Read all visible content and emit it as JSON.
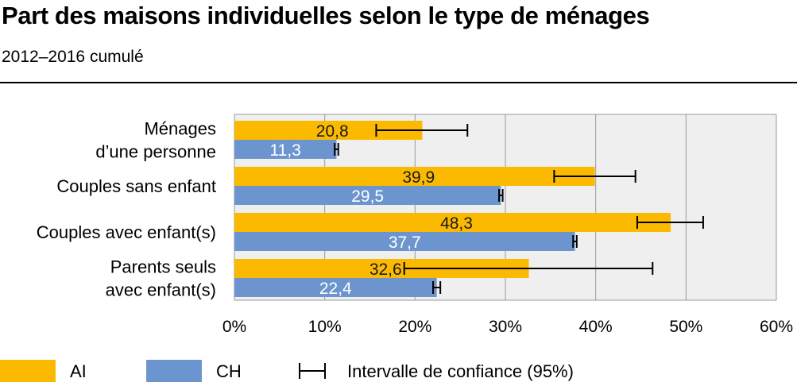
{
  "title": "Part des maisons individuelles selon le type de ménages",
  "subtitle": "2012–2016 cumulé",
  "chart_data": {
    "type": "bar",
    "orientation": "horizontal",
    "categories": [
      [
        "Ménages",
        "d’une personne"
      ],
      [
        "Couples sans enfant"
      ],
      [
        "Couples avec enfant(s)"
      ],
      [
        "Parents seuls",
        "avec enfant(s)"
      ]
    ],
    "series": [
      {
        "name": "AI",
        "color": "#FBBA00",
        "labels": [
          "20,8",
          "39,9",
          "48,3",
          "32,6"
        ],
        "values": [
          20.8,
          39.9,
          48.3,
          32.6
        ],
        "ci": [
          [
            15.7,
            25.8
          ],
          [
            35.4,
            44.4
          ],
          [
            44.6,
            51.9
          ],
          [
            18.8,
            46.3
          ]
        ]
      },
      {
        "name": "CH",
        "color": "#6C95CF",
        "labels": [
          "11,3",
          "29,5",
          "37,7",
          "22,4"
        ],
        "values": [
          11.3,
          29.5,
          37.7,
          22.4
        ],
        "ci": [
          [
            11.1,
            11.5
          ],
          [
            29.3,
            29.7
          ],
          [
            37.5,
            37.9
          ],
          [
            22.0,
            22.8
          ]
        ]
      }
    ],
    "xlim": [
      0,
      60
    ],
    "x_ticks": [
      "0%",
      "10%",
      "20%",
      "30%",
      "40%",
      "50%",
      "60%"
    ],
    "x_tick_values": [
      0,
      10,
      20,
      30,
      40,
      50,
      60
    ],
    "grid": true,
    "legend_position": "bottom",
    "legend": {
      "items": [
        "AI",
        "CH"
      ],
      "ci_label": "Intervalle de confiance (95%)"
    }
  }
}
